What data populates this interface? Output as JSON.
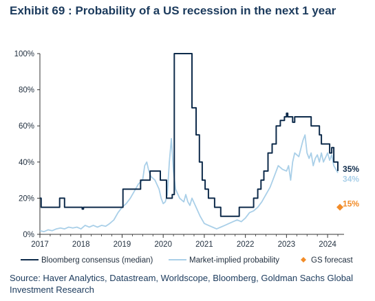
{
  "header": {
    "exhibit": "Exhibit 69",
    "separator": ":",
    "title": "Probability of a US recession in the next 1 year"
  },
  "source": "Source: Haver Analytics, Datastream, Worldscope, Bloomberg, Goldman Sachs Global Investment Research",
  "colors": {
    "bloomberg": "#0d2a4a",
    "market": "#a9cfe8",
    "gs": "#f28c28",
    "axis": "#333333"
  },
  "chart_data": {
    "type": "line",
    "title": "Probability of a US recession in the next 1 year",
    "ylabel": "",
    "xlabel": "",
    "xlim": [
      2017,
      2024.4
    ],
    "ylim": [
      0,
      100
    ],
    "x_ticks": [
      "2017",
      "2018",
      "2019",
      "2020",
      "2021",
      "2022",
      "2023",
      "2024"
    ],
    "y_ticks": [
      "0%",
      "20%",
      "40%",
      "60%",
      "80%",
      "100%"
    ],
    "grid": false,
    "legend": {
      "placement": "bottom",
      "items": [
        {
          "label": "Bloomberg consensus (median)",
          "key": "bloomberg"
        },
        {
          "label": "Market-implied probability",
          "key": "market"
        },
        {
          "label": "GS forecast",
          "key": "gs"
        }
      ]
    },
    "series": [
      {
        "name": "Bloomberg consensus (median)",
        "style": "step",
        "points": [
          [
            2017.0,
            20
          ],
          [
            2017.03,
            15
          ],
          [
            2017.45,
            15
          ],
          [
            2017.48,
            20
          ],
          [
            2017.58,
            20
          ],
          [
            2017.6,
            15
          ],
          [
            2018.0,
            15
          ],
          [
            2018.03,
            14
          ],
          [
            2018.06,
            15
          ],
          [
            2019.0,
            15
          ],
          [
            2019.02,
            25
          ],
          [
            2019.4,
            25
          ],
          [
            2019.45,
            30
          ],
          [
            2019.65,
            30
          ],
          [
            2019.68,
            35
          ],
          [
            2019.9,
            35
          ],
          [
            2019.93,
            30
          ],
          [
            2020.05,
            30
          ],
          [
            2020.08,
            20
          ],
          [
            2020.15,
            20
          ],
          [
            2020.22,
            22
          ],
          [
            2020.27,
            100
          ],
          [
            2020.65,
            100
          ],
          [
            2020.7,
            70
          ],
          [
            2020.8,
            55
          ],
          [
            2020.88,
            40
          ],
          [
            2020.95,
            30
          ],
          [
            2021.02,
            25
          ],
          [
            2021.1,
            20
          ],
          [
            2021.25,
            15
          ],
          [
            2021.4,
            10
          ],
          [
            2021.8,
            10
          ],
          [
            2021.85,
            15
          ],
          [
            2022.15,
            15
          ],
          [
            2022.2,
            20
          ],
          [
            2022.3,
            25
          ],
          [
            2022.38,
            30
          ],
          [
            2022.45,
            35
          ],
          [
            2022.55,
            45
          ],
          [
            2022.65,
            50
          ],
          [
            2022.75,
            60
          ],
          [
            2022.85,
            63
          ],
          [
            2022.95,
            65
          ],
          [
            2023.0,
            67
          ],
          [
            2023.03,
            65
          ],
          [
            2023.1,
            65
          ],
          [
            2023.15,
            62
          ],
          [
            2023.2,
            65
          ],
          [
            2023.55,
            65
          ],
          [
            2023.6,
            60
          ],
          [
            2023.75,
            60
          ],
          [
            2023.8,
            55
          ],
          [
            2023.85,
            50
          ],
          [
            2024.02,
            50
          ],
          [
            2024.05,
            45
          ],
          [
            2024.1,
            48
          ],
          [
            2024.15,
            40
          ],
          [
            2024.25,
            35
          ]
        ]
      },
      {
        "name": "Market-implied probability",
        "style": "smooth",
        "points": [
          [
            2017.0,
            2
          ],
          [
            2017.1,
            1.5
          ],
          [
            2017.2,
            2.5
          ],
          [
            2017.3,
            2
          ],
          [
            2017.4,
            3
          ],
          [
            2017.5,
            3.5
          ],
          [
            2017.6,
            3
          ],
          [
            2017.7,
            4
          ],
          [
            2017.8,
            3.5
          ],
          [
            2017.9,
            4
          ],
          [
            2018.0,
            3
          ],
          [
            2018.1,
            5
          ],
          [
            2018.2,
            4
          ],
          [
            2018.3,
            5
          ],
          [
            2018.4,
            4
          ],
          [
            2018.5,
            5
          ],
          [
            2018.6,
            4.5
          ],
          [
            2018.7,
            6
          ],
          [
            2018.8,
            8
          ],
          [
            2018.9,
            12
          ],
          [
            2019.0,
            15
          ],
          [
            2019.1,
            17
          ],
          [
            2019.2,
            20
          ],
          [
            2019.3,
            24
          ],
          [
            2019.4,
            28
          ],
          [
            2019.5,
            30
          ],
          [
            2019.55,
            38
          ],
          [
            2019.6,
            40
          ],
          [
            2019.65,
            35
          ],
          [
            2019.7,
            32
          ],
          [
            2019.8,
            30
          ],
          [
            2019.9,
            25
          ],
          [
            2019.95,
            20
          ],
          [
            2020.0,
            17
          ],
          [
            2020.05,
            18
          ],
          [
            2020.1,
            22
          ],
          [
            2020.15,
            40
          ],
          [
            2020.2,
            53
          ],
          [
            2020.25,
            35
          ],
          [
            2020.3,
            25
          ],
          [
            2020.4,
            20
          ],
          [
            2020.5,
            18
          ],
          [
            2020.55,
            22
          ],
          [
            2020.6,
            18
          ],
          [
            2020.65,
            16
          ],
          [
            2020.7,
            20
          ],
          [
            2020.8,
            15
          ],
          [
            2020.9,
            10
          ],
          [
            2021.0,
            6
          ],
          [
            2021.1,
            5
          ],
          [
            2021.2,
            4
          ],
          [
            2021.3,
            3
          ],
          [
            2021.4,
            4
          ],
          [
            2021.5,
            5
          ],
          [
            2021.6,
            6
          ],
          [
            2021.7,
            7
          ],
          [
            2021.8,
            8
          ],
          [
            2021.9,
            7
          ],
          [
            2022.0,
            9
          ],
          [
            2022.1,
            12
          ],
          [
            2022.2,
            13
          ],
          [
            2022.3,
            15
          ],
          [
            2022.4,
            18
          ],
          [
            2022.5,
            22
          ],
          [
            2022.6,
            26
          ],
          [
            2022.7,
            32
          ],
          [
            2022.8,
            38
          ],
          [
            2022.9,
            36
          ],
          [
            2023.0,
            35
          ],
          [
            2023.05,
            38
          ],
          [
            2023.1,
            30
          ],
          [
            2023.15,
            40
          ],
          [
            2023.2,
            45
          ],
          [
            2023.3,
            43
          ],
          [
            2023.4,
            52
          ],
          [
            2023.45,
            55
          ],
          [
            2023.5,
            45
          ],
          [
            2023.55,
            42
          ],
          [
            2023.6,
            45
          ],
          [
            2023.65,
            38
          ],
          [
            2023.7,
            42
          ],
          [
            2023.75,
            44
          ],
          [
            2023.8,
            40
          ],
          [
            2023.85,
            45
          ],
          [
            2023.9,
            40
          ],
          [
            2024.0,
            45
          ],
          [
            2024.05,
            41
          ],
          [
            2024.1,
            44
          ],
          [
            2024.15,
            38
          ],
          [
            2024.2,
            36
          ],
          [
            2024.25,
            34
          ]
        ]
      }
    ],
    "end_labels": [
      {
        "series": "Bloomberg consensus (median)",
        "text": "35%",
        "x": 2024.25,
        "y": 35
      },
      {
        "series": "Market-implied probability",
        "text": "34%",
        "x": 2024.25,
        "y": 34
      }
    ],
    "gs_forecast": {
      "name": "GS forecast",
      "x": 2024.3,
      "y": 15,
      "label": "15%"
    }
  }
}
